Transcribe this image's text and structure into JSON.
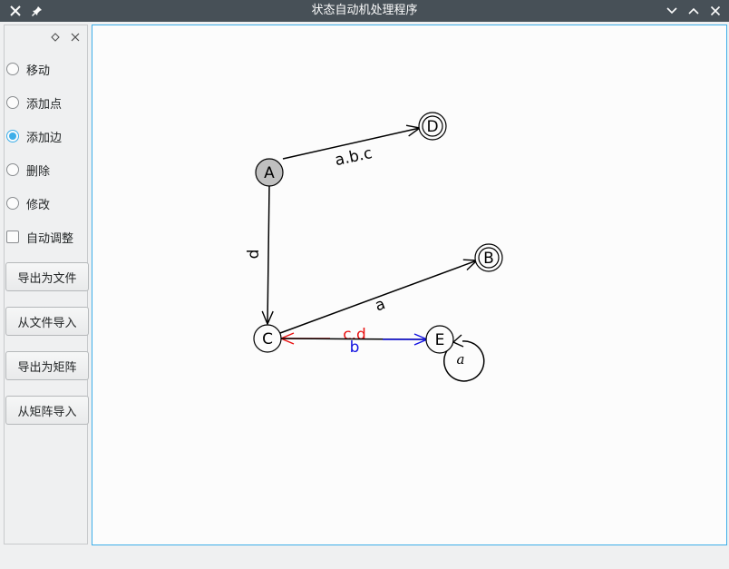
{
  "window": {
    "title": "状态自动机处理程序"
  },
  "sidebar": {
    "modes": [
      {
        "label": "移动",
        "checked": false
      },
      {
        "label": "添加点",
        "checked": false
      },
      {
        "label": "添加边",
        "checked": true
      },
      {
        "label": "删除",
        "checked": false
      },
      {
        "label": "修改",
        "checked": false
      }
    ],
    "auto_adjust": {
      "label": "自动调整",
      "checked": false
    },
    "buttons": [
      "导出为文件",
      "从文件导入",
      "导出为矩阵",
      "从矩阵导入"
    ]
  },
  "graph": {
    "colors": {
      "accent": "#3daee9",
      "red_edge": "#e81010",
      "blue_edge": "#1010e0",
      "start_fill": "#c0c0c0"
    },
    "nodes": [
      {
        "id": "A",
        "label": "A",
        "start": true,
        "accept": false
      },
      {
        "id": "D",
        "label": "D",
        "start": false,
        "accept": true
      },
      {
        "id": "B",
        "label": "B",
        "start": false,
        "accept": true
      },
      {
        "id": "C",
        "label": "C",
        "start": false,
        "accept": false
      },
      {
        "id": "E",
        "label": "E",
        "start": false,
        "accept": false
      }
    ],
    "edges": [
      {
        "from": "A",
        "to": "D",
        "label": "a.b.c"
      },
      {
        "from": "A",
        "to": "C",
        "label": "d"
      },
      {
        "from": "C",
        "to": "B",
        "label": "a"
      },
      {
        "from": "E",
        "to": "C",
        "label": "c.d"
      },
      {
        "from": "C",
        "to": "E",
        "label": "b"
      },
      {
        "from": "E",
        "to": "E",
        "label": "a"
      }
    ]
  }
}
